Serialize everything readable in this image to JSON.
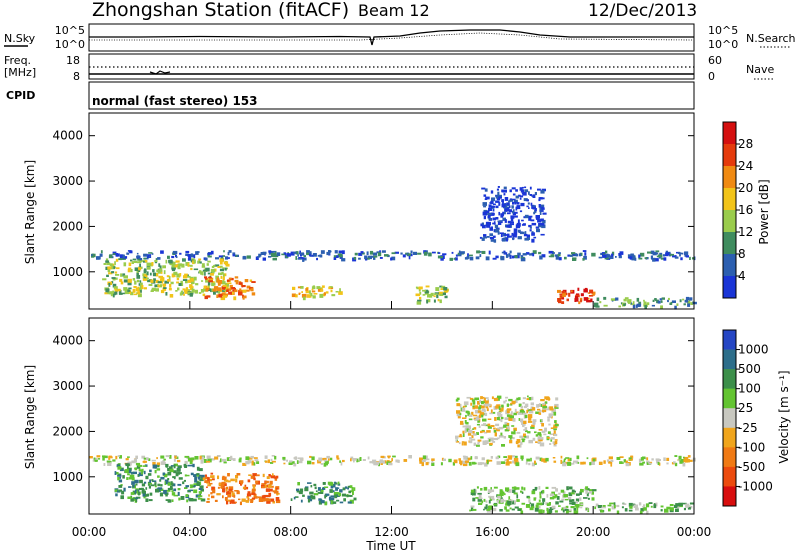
{
  "header": {
    "station": "Zhongshan Station (fitACF)",
    "beam": "Beam 12",
    "date": "12/Dec/2013"
  },
  "top_panels": {
    "nsky_label": "N.Sky",
    "nsky_ticks": [
      "10^5",
      "10^0"
    ],
    "nsearch_label": "N.Search",
    "nsearch_ticks": [
      "10^5",
      "10^0"
    ],
    "freq_label_line1": "Freq.",
    "freq_label_line2": "[MHz]",
    "freq_ticks": [
      "18",
      "8"
    ],
    "nave_label": "Nave",
    "nave_ticks": [
      "60",
      "0"
    ],
    "cpid_label": "CPID",
    "cpid_text": "normal (fast stereo) 153"
  },
  "chart_data": [
    {
      "type": "heatmap",
      "panel": "power",
      "ylabel": "Slant Range [km]",
      "ylim": [
        180,
        4500
      ],
      "yticks": [
        1000,
        2000,
        3000,
        4000
      ],
      "xlim_hours": [
        0,
        24
      ],
      "colorbar_label": "Power [dB]",
      "colorbar_ticks": [
        "4",
        "8",
        "12",
        "16",
        "20",
        "24",
        "28"
      ],
      "colorbar_colors": [
        "#1a35d6",
        "#2c5fb0",
        "#3f8c5e",
        "#9acc4c",
        "#f2c419",
        "#f08a12",
        "#e53b0c",
        "#d40f0f"
      ],
      "regions": [
        {
          "t0": 0.0,
          "t1": 24.0,
          "r0": 1300,
          "r1": 1480,
          "level": 1
        },
        {
          "t0": 0.5,
          "t1": 5.5,
          "r0": 500,
          "r1": 1300,
          "level": 3
        },
        {
          "t0": 4.5,
          "t1": 6.5,
          "r0": 450,
          "r1": 900,
          "level": 5
        },
        {
          "t0": 8.0,
          "t1": 10.0,
          "r0": 450,
          "r1": 700,
          "level": 4
        },
        {
          "t0": 12.8,
          "t1": 14.2,
          "r0": 350,
          "r1": 700,
          "level": 3
        },
        {
          "t0": 15.5,
          "t1": 18.0,
          "r0": 1700,
          "r1": 2900,
          "level": 0
        },
        {
          "t0": 18.5,
          "t1": 20.0,
          "r0": 350,
          "r1": 650,
          "level": 6
        },
        {
          "t0": 20.0,
          "t1": 24.0,
          "r0": 250,
          "r1": 450,
          "level": 2
        }
      ]
    },
    {
      "type": "heatmap",
      "panel": "velocity",
      "ylabel": "Slant Range [km]",
      "ylim": [
        180,
        4500
      ],
      "yticks": [
        1000,
        2000,
        3000,
        4000
      ],
      "xlim_hours": [
        0,
        24
      ],
      "xticks": [
        "00:00",
        "04:00",
        "08:00",
        "12:00",
        "16:00",
        "20:00",
        "00:00"
      ],
      "xlabel": "Time UT",
      "colorbar_label": "Velocity [m s⁻¹]",
      "colorbar_ticks": [
        "1000",
        "500",
        "100",
        "25",
        "-25",
        "-100",
        "-500",
        "-1000"
      ],
      "colorbar_colors": [
        "#2546c4",
        "#2d6e8a",
        "#3c8f4a",
        "#63c431",
        "#c8c8c0",
        "#f0a51c",
        "#f07a14",
        "#ec4b0e",
        "#d80e0e"
      ],
      "regions": [
        {
          "t0": 0.0,
          "t1": 24.0,
          "r0": 1300,
          "r1": 1480,
          "level": 4
        },
        {
          "t0": 1.0,
          "t1": 4.5,
          "r0": 500,
          "r1": 1300,
          "level": 2
        },
        {
          "t0": 4.5,
          "t1": 7.5,
          "r0": 450,
          "r1": 1100,
          "level": 6
        },
        {
          "t0": 8.0,
          "t1": 10.5,
          "r0": 450,
          "r1": 900,
          "level": 2
        },
        {
          "t0": 14.5,
          "t1": 18.5,
          "r0": 1700,
          "r1": 2800,
          "level": 4
        },
        {
          "t0": 15.0,
          "t1": 20.0,
          "r0": 250,
          "r1": 800,
          "level": 3
        },
        {
          "t0": 20.0,
          "t1": 24.0,
          "r0": 250,
          "r1": 450,
          "level": 3
        }
      ]
    }
  ]
}
